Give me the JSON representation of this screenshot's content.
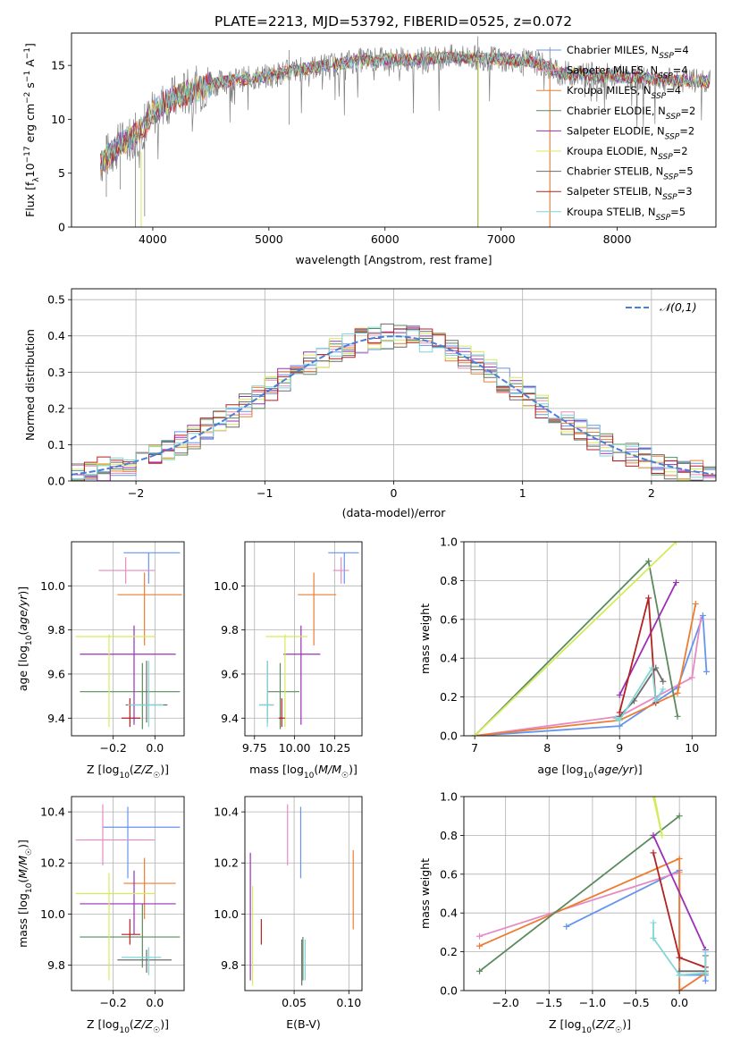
{
  "title": "PLATE=2213, MJD=53792, FIBERID=0525, z=0.072",
  "series_colors": [
    "#6495ed",
    "#e78ac3",
    "#ed7d31",
    "#5a8a5e",
    "#9b30b5",
    "#d4ec5a",
    "#6b6b6b",
    "#b22222",
    "#7fd6d6"
  ],
  "chart_data": [
    {
      "id": "spectrum",
      "type": "line",
      "xlabel": "wavelength [Angstrom, rest frame]",
      "ylabel": "Flux [f_λ10^-17 erg cm^-2 s^-1 A^-1]",
      "xlim": [
        3300,
        8850
      ],
      "ylim": [
        0,
        18
      ],
      "xticks": [
        4000,
        5000,
        6000,
        7000,
        8000
      ],
      "yticks": [
        0,
        5,
        10,
        15
      ],
      "legend": "upper right",
      "legend_entries": [
        "Chabrier MILES, N_SSP=4",
        "Salpeter MILES, N_SSP=4",
        "Kroupa MILES, N_SSP=4",
        "Chabrier ELODIE, N_SSP=2",
        "Salpeter ELODIE, N_SSP=2",
        "Kroupa ELODIE, N_SSP=2",
        "Chabrier STELIB, N_SSP=5",
        "Salpeter STELIB, N_SSP=3",
        "Kroupa STELIB, N_SSP=5"
      ],
      "data_range": [
        3550,
        8800
      ],
      "continuum": {
        "x": [
          3550,
          3700,
          3900,
          4000,
          4100,
          4300,
          4600,
          5000,
          5200,
          5500,
          5800,
          6000,
          6300,
          6600,
          7000,
          7300,
          7500,
          8000,
          8500,
          8800
        ],
        "y": [
          6.0,
          7.5,
          9.0,
          10.5,
          11.5,
          12.5,
          13.5,
          14.0,
          14.5,
          15.0,
          15.5,
          15.5,
          15.6,
          15.8,
          15.6,
          15.3,
          14.3,
          14.0,
          13.6,
          13.5
        ]
      },
      "deep_dips": [
        [
          3600,
          2.8
        ],
        [
          3720,
          3.5
        ],
        [
          3850,
          0.0
        ],
        [
          3930,
          1.0
        ],
        [
          5175,
          9.5
        ],
        [
          6800,
          0.0
        ],
        [
          7420,
          0.0
        ]
      ]
    },
    {
      "id": "residuals",
      "type": "histogram",
      "xlabel": "(data-model)/error",
      "ylabel": "Normed distribution",
      "xlim": [
        -2.5,
        2.5
      ],
      "ylim": [
        0,
        0.53
      ],
      "xticks": [
        -2,
        -1,
        0,
        1,
        2
      ],
      "yticks": [
        0.0,
        0.1,
        0.2,
        0.3,
        0.4,
        0.5
      ],
      "bin_width": 0.1,
      "legend_label": "𝒩(0,1)",
      "legend": "upper right",
      "grid": true
    },
    {
      "id": "age_vs_Z",
      "type": "errorbar",
      "xlabel": "Z [log10(Z/Z☉)]",
      "ylabel": "age [log10(age/yr)]",
      "xlim": [
        -0.4,
        0.14
      ],
      "ylim": [
        9.32,
        10.2
      ],
      "xticks": [
        -0.2,
        0.0
      ],
      "yticks": [
        9.4,
        9.6,
        9.8,
        10.0
      ],
      "points": [
        {
          "x": -0.03,
          "y": 10.15,
          "xerr": [
            0.12,
            0.15
          ],
          "yerr": [
            0.14,
            0.0
          ]
        },
        {
          "x": -0.14,
          "y": 10.07,
          "xerr": [
            0.13,
            0.14
          ],
          "yerr": [
            0.06,
            0.06
          ]
        },
        {
          "x": -0.05,
          "y": 9.96,
          "xerr": [
            0.13,
            0.18
          ],
          "yerr": [
            0.23,
            0.1
          ]
        },
        {
          "x": -0.06,
          "y": 9.52,
          "xerr": [
            0.3,
            0.18
          ],
          "yerr": [
            0.17,
            0.13
          ]
        },
        {
          "x": -0.1,
          "y": 9.69,
          "xerr": [
            0.26,
            0.2
          ],
          "yerr": [
            0.32,
            0.13
          ]
        },
        {
          "x": -0.22,
          "y": 9.77,
          "xerr": [
            0.16,
            0.22
          ],
          "yerr": [
            0.41,
            0.01
          ]
        },
        {
          "x": -0.04,
          "y": 9.46,
          "xerr": [
            0.1,
            0.1
          ],
          "yerr": [
            0.08,
            0.2
          ]
        },
        {
          "x": -0.12,
          "y": 9.4,
          "xerr": [
            0.04,
            0.05
          ],
          "yerr": [
            0.04,
            0.09
          ]
        },
        {
          "x": -0.03,
          "y": 9.46,
          "xerr": [
            0.1,
            0.07
          ],
          "yerr": [
            0.1,
            0.2
          ]
        }
      ]
    },
    {
      "id": "age_vs_mass",
      "type": "errorbar",
      "xlabel": "mass [log10(M/M☉)]",
      "ylabel": "",
      "xlim": [
        9.69,
        10.42
      ],
      "ylim": [
        9.32,
        10.2
      ],
      "xticks": [
        9.75,
        10.0,
        10.25
      ],
      "yticks": [
        9.4,
        9.6,
        9.8,
        10.0
      ],
      "points": [
        {
          "x": 10.31,
          "y": 10.15,
          "xerr": [
            0.1,
            0.09
          ],
          "yerr": [
            0.14,
            0.0
          ]
        },
        {
          "x": 10.29,
          "y": 10.07,
          "xerr": [
            0.05,
            0.05
          ],
          "yerr": [
            0.06,
            0.06
          ]
        },
        {
          "x": 10.12,
          "y": 9.96,
          "xerr": [
            0.1,
            0.14
          ],
          "yerr": [
            0.23,
            0.1
          ]
        },
        {
          "x": 9.91,
          "y": 9.52,
          "xerr": [
            0.08,
            0.12
          ],
          "yerr": [
            0.17,
            0.13
          ]
        },
        {
          "x": 10.04,
          "y": 9.69,
          "xerr": [
            0.11,
            0.12
          ],
          "yerr": [
            0.32,
            0.13
          ]
        },
        {
          "x": 9.94,
          "y": 9.77,
          "xerr": [
            0.12,
            0.14
          ],
          "yerr": [
            0.41,
            0.01
          ]
        },
        {
          "x": 9.83,
          "y": 9.46,
          "xerr": [
            0.05,
            0.04
          ],
          "yerr": [
            0.08,
            0.2
          ]
        },
        {
          "x": 9.92,
          "y": 9.4,
          "xerr": [
            0.02,
            0.02
          ],
          "yerr": [
            0.04,
            0.09
          ]
        },
        {
          "x": 9.83,
          "y": 9.46,
          "xerr": [
            0.05,
            0.04
          ],
          "yerr": [
            0.1,
            0.2
          ]
        }
      ]
    },
    {
      "id": "weight_vs_age",
      "type": "line",
      "xlabel": "age [log10(age/yr)]",
      "ylabel": "mass weight",
      "xlim": [
        6.85,
        10.33
      ],
      "ylim": [
        0,
        1.0
      ],
      "xticks": [
        7,
        8,
        9,
        10
      ],
      "yticks": [
        0.0,
        0.2,
        0.4,
        0.6,
        0.8,
        1.0
      ],
      "grid": true,
      "series": [
        {
          "ages": [
            7.0,
            9.0,
            9.8,
            10.15,
            10.2
          ],
          "weights": [
            0.0,
            0.05,
            0.25,
            0.62,
            0.33
          ]
        },
        {
          "ages": [
            7.0,
            9.0,
            10.0,
            10.12
          ],
          "weights": [
            0.0,
            0.1,
            0.3,
            0.6
          ]
        },
        {
          "ages": [
            7.0,
            9.0,
            9.8,
            10.05
          ],
          "weights": [
            0.0,
            0.08,
            0.22,
            0.68
          ]
        },
        {
          "ages": [
            7.0,
            9.4,
            9.8
          ],
          "weights": [
            0.0,
            0.9,
            0.1
          ]
        },
        {
          "ages": [
            9.0,
            9.78
          ],
          "weights": [
            0.21,
            0.79
          ]
        },
        {
          "ages": [
            7.0,
            9.78
          ],
          "weights": [
            0.0,
            1.0
          ]
        },
        {
          "ages": [
            9.0,
            9.2,
            9.5,
            9.6
          ],
          "weights": [
            0.1,
            0.18,
            0.35,
            0.28
          ]
        },
        {
          "ages": [
            9.0,
            9.4,
            9.5
          ],
          "weights": [
            0.12,
            0.71,
            0.17
          ]
        },
        {
          "ages": [
            8.95,
            9.0,
            9.45,
            9.5,
            9.6
          ],
          "weights": [
            0.09,
            0.08,
            0.35,
            0.18,
            0.24
          ]
        }
      ]
    },
    {
      "id": "mass_vs_Z",
      "type": "errorbar",
      "xlabel": "Z [log10(Z/Z☉)]",
      "ylabel": "mass [log10(M/M☉)]",
      "xlim": [
        -0.4,
        0.14
      ],
      "ylim": [
        9.7,
        10.46
      ],
      "xticks": [
        -0.2,
        0.0
      ],
      "yticks": [
        9.8,
        10.0,
        10.2,
        10.4
      ],
      "points": [
        {
          "x": -0.13,
          "y": 10.34,
          "xerr": [
            0.12,
            0.25
          ],
          "yerr": [
            0.2,
            0.08
          ]
        },
        {
          "x": -0.25,
          "y": 10.29,
          "xerr": [
            0.13,
            0.25
          ],
          "yerr": [
            0.1,
            0.14
          ]
        },
        {
          "x": -0.05,
          "y": 10.12,
          "xerr": [
            0.1,
            0.15
          ],
          "yerr": [
            0.14,
            0.1
          ]
        },
        {
          "x": -0.06,
          "y": 9.91,
          "xerr": [
            0.3,
            0.18
          ],
          "yerr": [
            0.12,
            0.13
          ]
        },
        {
          "x": -0.1,
          "y": 10.04,
          "xerr": [
            0.26,
            0.2
          ],
          "yerr": [
            0.12,
            0.13
          ]
        },
        {
          "x": -0.22,
          "y": 10.08,
          "xerr": [
            0.16,
            0.22
          ],
          "yerr": [
            0.34,
            0.08
          ]
        },
        {
          "x": -0.04,
          "y": 9.82,
          "xerr": [
            0.14,
            0.12
          ],
          "yerr": [
            0.05,
            0.04
          ]
        },
        {
          "x": -0.12,
          "y": 9.92,
          "xerr": [
            0.04,
            0.05
          ],
          "yerr": [
            0.04,
            0.06
          ]
        },
        {
          "x": -0.03,
          "y": 9.83,
          "xerr": [
            0.13,
            0.06
          ],
          "yerr": [
            0.07,
            0.04
          ]
        }
      ]
    },
    {
      "id": "mass_vs_EBV",
      "type": "errorbar",
      "xlabel": "E(B-V)",
      "ylabel": "",
      "xlim": [
        0.005,
        0.112
      ],
      "ylim": [
        9.7,
        10.46
      ],
      "xticks": [
        0.05,
        0.1
      ],
      "yticks": [
        9.8,
        10.0,
        10.2,
        10.4
      ],
      "points": [
        {
          "x": 0.056,
          "y": 10.34,
          "xerr": [
            0,
            0
          ],
          "yerr": [
            0.2,
            0.08
          ]
        },
        {
          "x": 0.044,
          "y": 10.29,
          "xerr": [
            0,
            0
          ],
          "yerr": [
            0.1,
            0.14
          ]
        },
        {
          "x": 0.104,
          "y": 10.12,
          "xerr": [
            0,
            0
          ],
          "yerr": [
            0.18,
            0.13
          ]
        },
        {
          "x": 0.058,
          "y": 9.84,
          "xerr": [
            0,
            0
          ],
          "yerr": [
            0.1,
            0.07
          ]
        },
        {
          "x": 0.01,
          "y": 10.04,
          "xerr": [
            0,
            0
          ],
          "yerr": [
            0.3,
            0.2
          ]
        },
        {
          "x": 0.012,
          "y": 9.95,
          "xerr": [
            0,
            0
          ],
          "yerr": [
            0.23,
            0.16
          ]
        },
        {
          "x": 0.057,
          "y": 9.8,
          "xerr": [
            0,
            0
          ],
          "yerr": [
            0.08,
            0.1
          ]
        },
        {
          "x": 0.02,
          "y": 9.92,
          "xerr": [
            0,
            0
          ],
          "yerr": [
            0.04,
            0.06
          ]
        },
        {
          "x": 0.06,
          "y": 9.8,
          "xerr": [
            0,
            0
          ],
          "yerr": [
            0.06,
            0.1
          ]
        }
      ]
    },
    {
      "id": "weight_vs_Z",
      "type": "line",
      "xlabel": "Z [log10(Z/Z☉)]",
      "ylabel": "mass weight",
      "xlim": [
        -2.48,
        0.42
      ],
      "ylim": [
        0,
        1.0
      ],
      "xticks": [
        -2.0,
        -1.5,
        -1.0,
        -0.5,
        0.0
      ],
      "yticks": [
        0.0,
        0.2,
        0.4,
        0.6,
        0.8,
        1.0
      ],
      "grid": true,
      "series": [
        {
          "Z": [
            -1.3,
            0.0,
            0.0,
            0.3,
            0.3
          ],
          "weights": [
            0.33,
            0.62,
            0.08,
            0.08,
            0.05
          ]
        },
        {
          "Z": [
            -2.3,
            0.0,
            0.0,
            0.3
          ],
          "weights": [
            0.28,
            0.61,
            0.0,
            0.09
          ]
        },
        {
          "Z": [
            -2.3,
            0.0,
            0.0,
            0.3
          ],
          "weights": [
            0.23,
            0.68,
            0.0,
            0.09
          ]
        },
        {
          "Z": [
            -2.3,
            0.0
          ],
          "weights": [
            0.1,
            0.9
          ]
        },
        {
          "Z": [
            -0.3,
            0.3
          ],
          "weights": [
            0.8,
            0.21
          ]
        },
        {
          "Z": [
            -0.3,
            -0.2
          ],
          "weights": [
            1.0,
            0.8
          ]
        },
        {
          "Z": [
            0.0,
            0.3,
            0.3
          ],
          "weights": [
            0.1,
            0.1,
            0.18
          ]
        },
        {
          "Z": [
            -0.3,
            0.0,
            0.3
          ],
          "weights": [
            0.71,
            0.17,
            0.12
          ]
        },
        {
          "Z": [
            -0.3,
            -0.3,
            0.0,
            0.3,
            0.3
          ],
          "weights": [
            0.35,
            0.27,
            0.08,
            0.09,
            0.2
          ]
        }
      ]
    }
  ]
}
